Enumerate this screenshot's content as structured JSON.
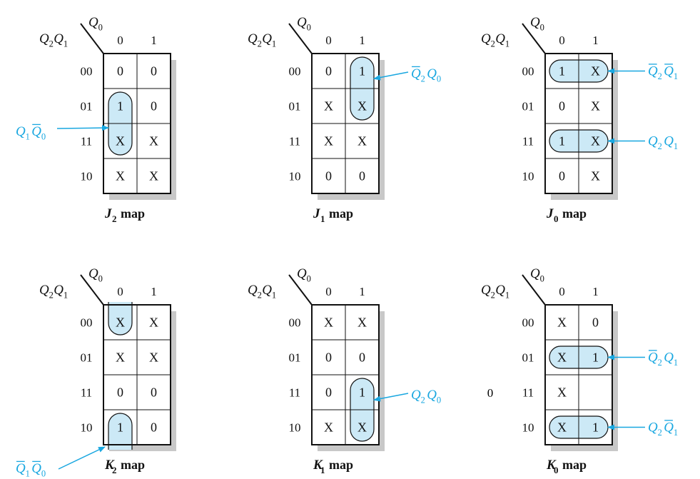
{
  "colors": {
    "highlight": "#cce9f6",
    "annotation": "#19a7e0",
    "shadow": "#c8c8c8",
    "ink": "#111111"
  },
  "corner": {
    "row_var_1": "Q",
    "row_sub_1": "2",
    "row_var_2": "Q",
    "row_sub_2": "1",
    "col_var": "Q",
    "col_sub": "0"
  },
  "col_labels": [
    "0",
    "1"
  ],
  "row_labels": [
    "00",
    "01",
    "11",
    "10"
  ],
  "map_word": "map",
  "stray_label": "0",
  "maps": [
    {
      "id": "J2",
      "letter": "J",
      "sub": "2",
      "cells": [
        [
          "0",
          "0"
        ],
        [
          "1",
          "0"
        ],
        [
          "X",
          "X"
        ],
        [
          "X",
          "X"
        ]
      ],
      "loops": [
        {
          "col": 0,
          "r1": 1,
          "r2": 2,
          "label": [
            {
              "t": "Q",
              "s": "1",
              "bar": false
            },
            {
              "t": "Q",
              "s": "0",
              "bar": true
            }
          ],
          "side": "left",
          "anchor_row": 2
        }
      ]
    },
    {
      "id": "J1",
      "letter": "J",
      "sub": "1",
      "cells": [
        [
          "0",
          "1"
        ],
        [
          "X",
          "X"
        ],
        [
          "X",
          "X"
        ],
        [
          "0",
          "0"
        ]
      ],
      "loops": [
        {
          "col": 1,
          "r1": 0,
          "r2": 1,
          "label": [
            {
              "t": "Q",
              "s": "2",
              "bar": true
            },
            {
              "t": "Q",
              "s": "0",
              "bar": false
            }
          ],
          "side": "right",
          "anchor_row": 0
        }
      ]
    },
    {
      "id": "J0",
      "letter": "J",
      "sub": "0",
      "cells": [
        [
          "1",
          "X"
        ],
        [
          "0",
          "X"
        ],
        [
          "1",
          "X"
        ],
        [
          "0",
          "X"
        ]
      ],
      "loops": [
        {
          "row": 0,
          "label": [
            {
              "t": "Q",
              "s": "2",
              "bar": true
            },
            {
              "t": "Q",
              "s": "1",
              "bar": true
            }
          ],
          "side": "right"
        },
        {
          "row": 2,
          "label": [
            {
              "t": "Q",
              "s": "2",
              "bar": false
            },
            {
              "t": "Q",
              "s": "1",
              "bar": false
            }
          ],
          "side": "right"
        }
      ]
    },
    {
      "id": "K2",
      "letter": "K",
      "sub": "2",
      "cells": [
        [
          "X",
          "X"
        ],
        [
          "X",
          "X"
        ],
        [
          "0",
          "0"
        ],
        [
          "1",
          "0"
        ]
      ],
      "loops": [
        {
          "col": 0,
          "r1": 0,
          "r2": 0,
          "open": "top"
        },
        {
          "col": 0,
          "r1": 3,
          "r2": 3,
          "open": "bottom",
          "label": [
            {
              "t": "Q",
              "s": "1",
              "bar": true
            },
            {
              "t": "Q",
              "s": "0",
              "bar": true
            }
          ],
          "side": "below"
        }
      ]
    },
    {
      "id": "K1",
      "letter": "K",
      "sub": "1",
      "cells": [
        [
          "X",
          "X"
        ],
        [
          "0",
          "0"
        ],
        [
          "0",
          "1"
        ],
        [
          "X",
          "X"
        ]
      ],
      "loops": [
        {
          "col": 1,
          "r1": 2,
          "r2": 3,
          "label": [
            {
              "t": "Q",
              "s": "2",
              "bar": false
            },
            {
              "t": "Q",
              "s": "0",
              "bar": false
            }
          ],
          "side": "right",
          "anchor_row": 2
        }
      ]
    },
    {
      "id": "K0",
      "letter": "K",
      "sub": "0",
      "cells": [
        [
          "X",
          "0"
        ],
        [
          "X",
          "1"
        ],
        [
          "X",
          ""
        ],
        [
          "X",
          "1"
        ]
      ],
      "loops": [
        {
          "row": 1,
          "label": [
            {
              "t": "Q",
              "s": "2",
              "bar": true
            },
            {
              "t": "Q",
              "s": "1",
              "bar": false
            }
          ],
          "side": "right"
        },
        {
          "row": 3,
          "label": [
            {
              "t": "Q",
              "s": "2",
              "bar": false
            },
            {
              "t": "Q",
              "s": "1",
              "bar": true
            }
          ],
          "side": "right"
        }
      ]
    }
  ]
}
